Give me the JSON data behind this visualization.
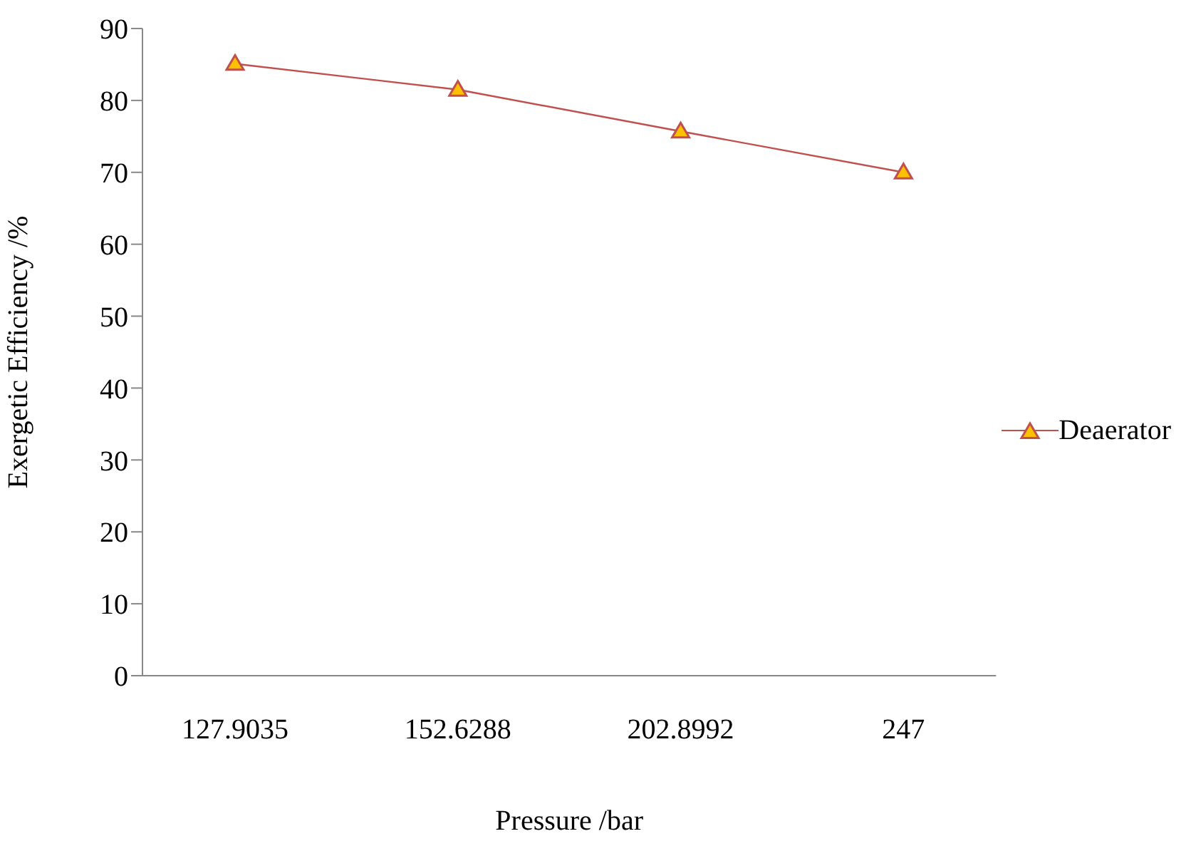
{
  "chart_data": {
    "type": "line",
    "xlabel": "Pressure /bar",
    "ylabel": "Exergetic Efficiency /%",
    "categories": [
      "127.9035",
      "152.6288",
      "202.8992",
      "247"
    ],
    "series": [
      {
        "name": "Deaerator",
        "color": "#c0504d",
        "values": [
          85.1,
          81.5,
          75.7,
          70.0
        ]
      }
    ],
    "ylim": [
      0,
      90
    ],
    "yticks": [
      0,
      10,
      20,
      30,
      40,
      50,
      60,
      70,
      80,
      90
    ],
    "grid": false,
    "legend": "right",
    "marker": "triangle",
    "line_style": "solid"
  }
}
